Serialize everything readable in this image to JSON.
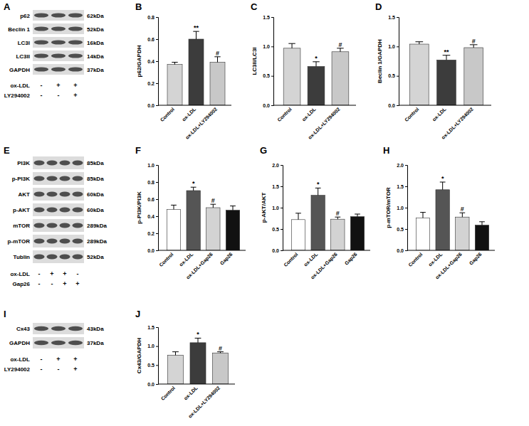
{
  "chart_data": [
    {
      "type": "blot",
      "title": "A",
      "rows": [
        {
          "label": "p62",
          "size": "62kDa"
        },
        {
          "label": "Beclin 1",
          "size": "52kDa"
        },
        {
          "label": "LC3I",
          "size": "16kDa"
        },
        {
          "label": "LC3II",
          "size": "14kDa"
        },
        {
          "label": "GAPDH",
          "size": "37kDa"
        }
      ],
      "treatments": [
        {
          "name": "ox-LDL",
          "signs": [
            "-",
            "+",
            "+"
          ]
        },
        {
          "name": "LY294002",
          "signs": [
            "-",
            "-",
            "+"
          ]
        }
      ]
    },
    {
      "type": "bar",
      "title": "B",
      "ylabel": "p62/GAPDH",
      "categories": [
        "Control",
        "ox-LDL",
        "ox-LDL+LY294002"
      ],
      "values": [
        0.37,
        0.6,
        0.39
      ],
      "errors": [
        0.02,
        0.07,
        0.05
      ],
      "colors": [
        "#d4d4d4",
        "#3c3c3c",
        "#c8c8c8"
      ],
      "ylim": [
        0,
        0.8
      ],
      "yticks": [
        {
          "value": 0,
          "label": "0.0"
        },
        0.2,
        0.4,
        0.6,
        0.8
      ],
      "annotations": [
        {
          "text": "**",
          "category": "ox-LDL"
        },
        {
          "text": "#",
          "category": "ox-LDL+LY294002"
        }
      ]
    },
    {
      "type": "bar",
      "title": "C",
      "ylabel": "LC3II/LC3I",
      "categories": [
        "Control",
        "ox-LDL",
        "ox-LDL+LY294002"
      ],
      "values": [
        0.97,
        0.66,
        0.91
      ],
      "errors": [
        0.08,
        0.08,
        0.06
      ],
      "colors": [
        "#d4d4d4",
        "#3c3c3c",
        "#c8c8c8"
      ],
      "ylim": [
        0,
        1.5
      ],
      "yticks": [
        {
          "value": 0,
          "label": "0.0"
        },
        0.5,
        {
          "value": 1,
          "label": "1.0"
        },
        1.5
      ],
      "annotations": [
        {
          "text": "*",
          "category": "ox-LDL"
        },
        {
          "text": "#",
          "category": "ox-LDL+LY294002"
        }
      ]
    },
    {
      "type": "bar",
      "title": "D",
      "ylabel": "Beclin 1/GAPDH",
      "categories": [
        "Control",
        "ox-LDL",
        "ox-LDL+LY294002"
      ],
      "values": [
        1.04,
        0.77,
        0.98
      ],
      "errors": [
        0.04,
        0.08,
        0.05
      ],
      "colors": [
        "#d4d4d4",
        "#3c3c3c",
        "#c8c8c8"
      ],
      "ylim": [
        0,
        1.5
      ],
      "yticks": [
        {
          "value": 0,
          "label": "0.0"
        },
        0.5,
        {
          "value": 1,
          "label": "1.0"
        },
        1.5
      ],
      "annotations": [
        {
          "text": "**",
          "category": "ox-LDL"
        },
        {
          "text": "#",
          "category": "ox-LDL+LY294002"
        }
      ]
    },
    {
      "type": "blot",
      "title": "E",
      "rows": [
        {
          "label": "PI3K",
          "size": "85kDa"
        },
        {
          "label": "p-PI3K",
          "size": "85kDa"
        },
        {
          "label": "AKT",
          "size": "60kDa"
        },
        {
          "label": "p-AKT",
          "size": "60kDa"
        },
        {
          "label": "mTOR",
          "size": "289kDa"
        },
        {
          "label": "p-mTOR",
          "size": "289kDa"
        },
        {
          "label": "Tublin",
          "size": "52kDa"
        }
      ],
      "treatments": [
        {
          "name": "ox-LDL",
          "signs": [
            "-",
            "+",
            "+",
            "-"
          ]
        },
        {
          "name": "Gap26",
          "signs": [
            "-",
            "-",
            "+",
            "+"
          ]
        }
      ]
    },
    {
      "type": "bar",
      "title": "F",
      "ylabel": "p-PI3K/PI3K",
      "categories": [
        "Control",
        "ox-LDL",
        "ox-LDL+Gap26",
        "Gap26"
      ],
      "values": [
        0.48,
        0.7,
        0.5,
        0.47
      ],
      "errors": [
        0.05,
        0.04,
        0.04,
        0.05
      ],
      "colors": [
        "#ffffff",
        "#555555",
        "#d3d3d3",
        "#111111"
      ],
      "ylim": [
        0,
        1
      ],
      "yticks": [
        {
          "value": 0,
          "label": "0.0"
        },
        0.2,
        0.4,
        0.6,
        0.8,
        {
          "value": 1,
          "label": "1.0"
        }
      ],
      "annotations": [
        {
          "text": "*",
          "category": "ox-LDL"
        },
        {
          "text": "#",
          "category": "ox-LDL+Gap26"
        }
      ]
    },
    {
      "type": "bar",
      "title": "G",
      "ylabel": "p-AKT/AKT",
      "categories": [
        "Control",
        "ox-LDL",
        "ox-LDL+Gap26",
        "Gap26"
      ],
      "values": [
        0.72,
        1.29,
        0.73,
        0.79
      ],
      "errors": [
        0.15,
        0.17,
        0.05,
        0.06
      ],
      "colors": [
        "#ffffff",
        "#555555",
        "#d3d3d3",
        "#111111"
      ],
      "ylim": [
        0,
        2
      ],
      "yticks": [
        {
          "value": 0,
          "label": "0.0"
        },
        0.5,
        {
          "value": 1,
          "label": "1.0"
        },
        1.5,
        {
          "value": 2,
          "label": "2.0"
        }
      ],
      "annotations": [
        {
          "text": "*",
          "category": "ox-LDL"
        },
        {
          "text": "#",
          "category": "ox-LDL+Gap26"
        }
      ]
    },
    {
      "type": "bar",
      "title": "H",
      "ylabel": "p-mTOR/mTOR",
      "categories": [
        "Control",
        "ox-LDL",
        "ox-LDL+Gap26",
        "Gap26"
      ],
      "values": [
        0.76,
        1.42,
        0.78,
        0.59
      ],
      "errors": [
        0.13,
        0.18,
        0.1,
        0.08
      ],
      "colors": [
        "#ffffff",
        "#555555",
        "#d3d3d3",
        "#111111"
      ],
      "ylim": [
        0,
        2
      ],
      "yticks": [
        {
          "value": 0,
          "label": "0.0"
        },
        0.5,
        {
          "value": 1,
          "label": "1.0"
        },
        1.5,
        {
          "value": 2,
          "label": "2.0"
        }
      ],
      "annotations": [
        {
          "text": "*",
          "category": "ox-LDL"
        },
        {
          "text": "#",
          "category": "ox-LDL+Gap26"
        }
      ]
    },
    {
      "type": "blot",
      "title": "I",
      "rows": [
        {
          "label": "Cx43",
          "size": "43kDa"
        },
        {
          "label": "GAPDH",
          "size": "37kDa"
        }
      ],
      "treatments": [
        {
          "name": "ox-LDL",
          "signs": [
            "-",
            "+",
            "+"
          ]
        },
        {
          "name": "LY294002",
          "signs": [
            "-",
            "-",
            "+"
          ]
        }
      ]
    },
    {
      "type": "bar",
      "title": "J",
      "ylabel": "Cx43/GAPDH",
      "categories": [
        "Control",
        "ox-LDL",
        "ox-LDL+LY294002"
      ],
      "values": [
        0.76,
        1.09,
        0.82
      ],
      "errors": [
        0.09,
        0.12,
        0.03
      ],
      "colors": [
        "#d4d4d4",
        "#3c3c3c",
        "#c8c8c8"
      ],
      "ylim": [
        0,
        1.5
      ],
      "yticks": [
        {
          "value": 0,
          "label": "0.0"
        },
        0.5,
        {
          "value": 1,
          "label": "1.0"
        },
        1.5
      ],
      "annotations": [
        {
          "text": "*",
          "category": "ox-LDL"
        },
        {
          "text": "#",
          "category": "ox-LDL+LY294002"
        }
      ]
    }
  ]
}
